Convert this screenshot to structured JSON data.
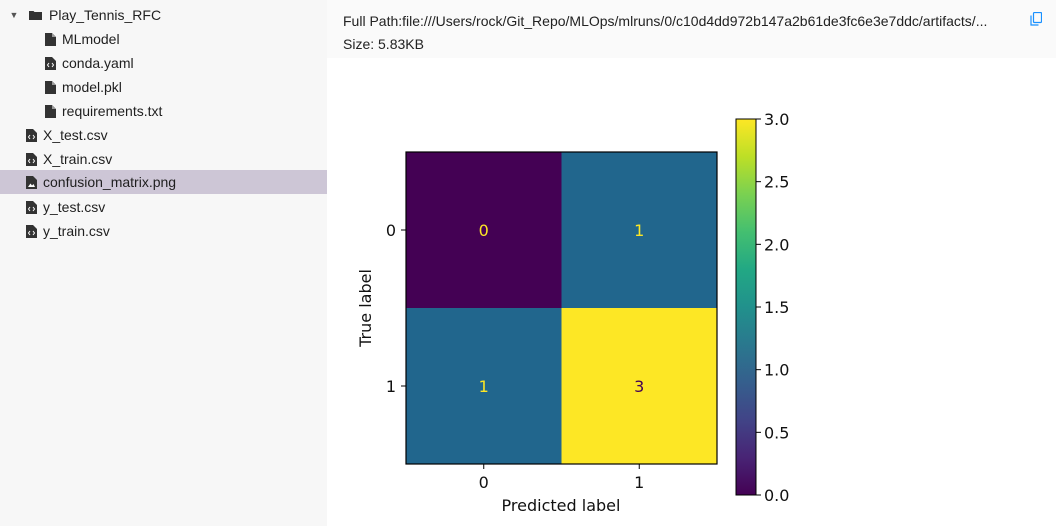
{
  "sidebar": {
    "folder": {
      "label": "Play_Tennis_RFC",
      "icon": "folder-icon",
      "expanded_icon": "caret-down-icon"
    },
    "folder_items": [
      {
        "label": "MLmodel",
        "icon": "file-icon"
      },
      {
        "label": "conda.yaml",
        "icon": "code-file-icon"
      },
      {
        "label": "model.pkl",
        "icon": "file-icon"
      },
      {
        "label": "requirements.txt",
        "icon": "file-icon"
      }
    ],
    "root_items": [
      {
        "label": "X_test.csv",
        "icon": "code-file-icon"
      },
      {
        "label": "X_train.csv",
        "icon": "code-file-icon"
      },
      {
        "label": "confusion_matrix.png",
        "icon": "image-file-icon",
        "selected": true
      },
      {
        "label": "y_test.csv",
        "icon": "code-file-icon"
      },
      {
        "label": "y_train.csv",
        "icon": "code-file-icon"
      }
    ],
    "selected_color": "#cdc6d6"
  },
  "artifact": {
    "full_path": "Full Path:file:///Users/rock/Git_Repo/MLOps/mlruns/0/c10d4dd972b147a2b61de3fc6e3e7ddc/artifacts/...",
    "size": "Size: 5.83KB",
    "copy_icon": "copy-icon"
  },
  "chart_data": {
    "type": "heatmap",
    "rows": [
      "0",
      "1"
    ],
    "cols": [
      "0",
      "1"
    ],
    "values": [
      [
        0,
        1
      ],
      [
        1,
        3
      ]
    ],
    "xlabel": "Predicted label",
    "ylabel": "True label",
    "colorbar": {
      "min": 0.0,
      "max": 3.0,
      "ticks": [
        "0.0",
        "0.5",
        "1.0",
        "1.5",
        "2.0",
        "2.5",
        "3.0"
      ]
    },
    "colormap": "viridis",
    "cell_colors": {
      "0": "#440154",
      "1": "#21668d",
      "3": "#fde725"
    },
    "text_colors": {
      "0": "#fde725",
      "1": "#fde725",
      "3": "#440154"
    }
  }
}
